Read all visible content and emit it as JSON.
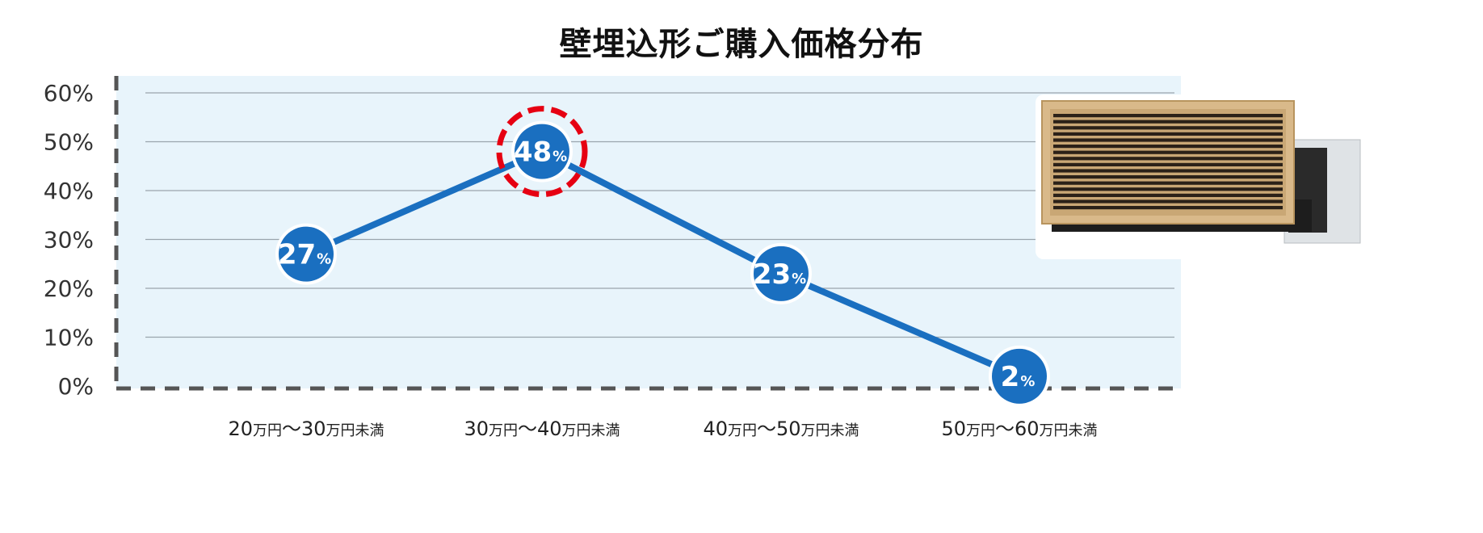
{
  "chart_data": {
    "type": "line",
    "title": "壁埋込形ご購入価格分布",
    "categories": [
      {
        "amount1": "20",
        "unit1": "万円",
        "sep": "〜",
        "amount2": "30",
        "unit2": "万円未満"
      },
      {
        "amount1": "30",
        "unit1": "万円",
        "sep": "〜",
        "amount2": "40",
        "unit2": "万円未満"
      },
      {
        "amount1": "40",
        "unit1": "万円",
        "sep": "〜",
        "amount2": "50",
        "unit2": "万円未満"
      },
      {
        "amount1": "50",
        "unit1": "万円",
        "sep": "〜",
        "amount2": "60",
        "unit2": "万円未満"
      }
    ],
    "values": [
      27,
      48,
      23,
      2
    ],
    "value_labels": [
      {
        "num": "27",
        "unit": "%"
      },
      {
        "num": "48",
        "unit": "%"
      },
      {
        "num": "23",
        "unit": "%"
      },
      {
        "num": "2",
        "unit": "%"
      }
    ],
    "highlight_index": 1,
    "ylim": [
      0,
      60
    ],
    "yticks": [
      "0%",
      "10%",
      "20%",
      "30%",
      "40%",
      "50%",
      "60%"
    ],
    "grid": true,
    "colors": {
      "line": "#1a6fc0",
      "marker": "#1a6fc0",
      "highlight_ring": "#e60012",
      "plot_bg": "#e8f4fb",
      "grid": "#9aa5ad",
      "axis": "#555555"
    }
  },
  "image": {
    "icon": "wall-embedded-air-conditioner-icon"
  }
}
